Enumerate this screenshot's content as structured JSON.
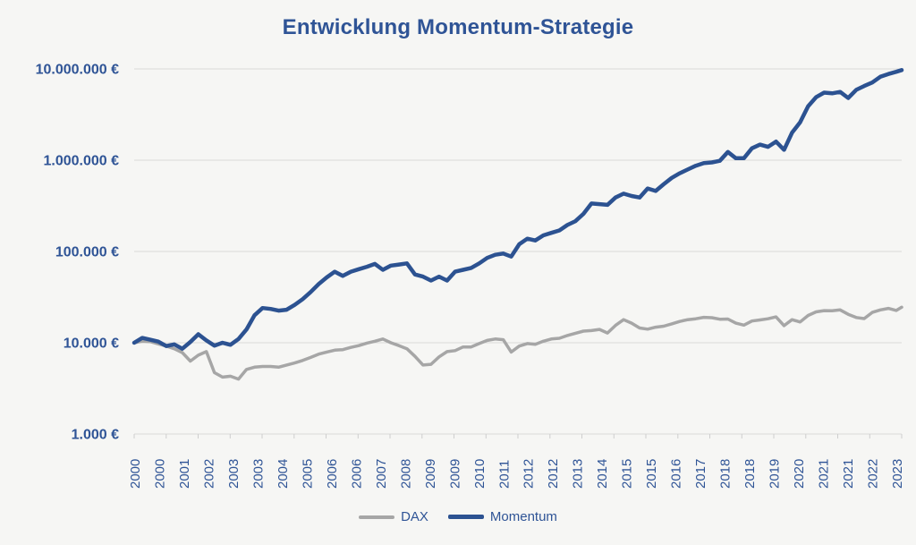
{
  "page": {
    "background": "#f6f6f4"
  },
  "header": {
    "title": "Entwicklung Momentum-Strategie"
  },
  "colors": {
    "title": "#2f5496",
    "axis_label": "#2f5496",
    "gridline": "#d9d9d8",
    "axis_line": "#cecece",
    "momentum": "#2c5291",
    "dax": "#a6a6a6",
    "background": "#f6f6f4"
  },
  "chart_data": {
    "type": "line",
    "title": "Entwicklung Momentum-Strategie",
    "currency": "EUR",
    "grid": "horizontal",
    "x_axis": {
      "unit": "year",
      "labels": [
        "2000",
        "2000",
        "2001",
        "2002",
        "2003",
        "2003",
        "2004",
        "2005",
        "2006",
        "2006",
        "2007",
        "2008",
        "2009",
        "2009",
        "2010",
        "2011",
        "2012",
        "2012",
        "2013",
        "2014",
        "2015",
        "2015",
        "2016",
        "2017",
        "2018",
        "2018",
        "2019",
        "2020",
        "2021",
        "2021",
        "2022",
        "2023"
      ],
      "label_rotation_deg": -90,
      "tick_interval_months": 12,
      "months_range": [
        0,
        287
      ]
    },
    "y_axis": {
      "scale": "log10",
      "range": [
        1000,
        10000000
      ],
      "ticks": [
        {
          "value": 1000,
          "label": "1.000 €"
        },
        {
          "value": 10000,
          "label": "10.000 €"
        },
        {
          "value": 100000,
          "label": "100.000 €"
        },
        {
          "value": 1000000,
          "label": "1.000.000 €"
        },
        {
          "value": 10000000,
          "label": "10.000.000 €"
        }
      ]
    },
    "months": [
      0,
      3,
      6,
      9,
      12,
      15,
      18,
      21,
      24,
      27,
      30,
      33,
      36,
      39,
      42,
      45,
      48,
      51,
      54,
      57,
      60,
      63,
      66,
      69,
      72,
      75,
      78,
      81,
      84,
      87,
      90,
      93,
      96,
      99,
      102,
      105,
      108,
      111,
      114,
      117,
      120,
      123,
      126,
      129,
      132,
      135,
      138,
      141,
      144,
      147,
      150,
      153,
      156,
      159,
      162,
      165,
      168,
      171,
      174,
      177,
      180,
      183,
      186,
      189,
      192,
      195,
      198,
      201,
      204,
      207,
      210,
      213,
      216,
      219,
      222,
      225,
      228,
      231,
      234,
      237,
      240,
      243,
      246,
      249,
      252,
      255,
      258,
      261,
      264,
      267,
      270,
      273,
      276,
      279,
      282,
      285,
      287
    ],
    "series": [
      {
        "name": "DAX",
        "color": "#a6a6a6",
        "stroke_width": 3.5,
        "values": [
          10000,
          10400,
          10300,
          9700,
          9200,
          8600,
          7800,
          6300,
          7300,
          8000,
          4700,
          4200,
          4300,
          4000,
          5100,
          5400,
          5500,
          5500,
          5400,
          5700,
          6000,
          6400,
          6900,
          7500,
          7900,
          8300,
          8400,
          8900,
          9300,
          9900,
          10400,
          11000,
          10000,
          9300,
          8600,
          7100,
          5700,
          5800,
          7000,
          8000,
          8200,
          9000,
          9000,
          9800,
          10600,
          11000,
          10800,
          7900,
          9200,
          9800,
          9600,
          10400,
          11000,
          11200,
          12000,
          12700,
          13400,
          13600,
          14000,
          12800,
          15500,
          17900,
          16400,
          14500,
          14100,
          14800,
          15200,
          16100,
          17100,
          17900,
          18300,
          19000,
          18800,
          18100,
          18200,
          16400,
          15600,
          17300,
          17800,
          18300,
          19200,
          15400,
          17900,
          16900,
          19900,
          21800,
          22500,
          22400,
          22900,
          20500,
          18900,
          18400,
          21500,
          22900,
          23800,
          22600,
          24500
        ]
      },
      {
        "name": "Momentum",
        "color": "#2c5291",
        "stroke_width": 4.5,
        "values": [
          10000,
          11300,
          10800,
          10300,
          9200,
          9600,
          8600,
          10200,
          12400,
          10600,
          9300,
          10000,
          9500,
          11000,
          14000,
          20000,
          24000,
          23500,
          22500,
          23000,
          26000,
          30000,
          36000,
          44000,
          52000,
          60000,
          54000,
          60000,
          64000,
          68000,
          73000,
          63000,
          70000,
          72000,
          74000,
          56000,
          53000,
          48000,
          53000,
          48000,
          60000,
          63000,
          66000,
          74000,
          85000,
          92000,
          95000,
          88000,
          120000,
          138000,
          132000,
          150000,
          160000,
          170000,
          195000,
          215000,
          258000,
          335000,
          330000,
          324000,
          390000,
          430000,
          405000,
          390000,
          490000,
          460000,
          545000,
          640000,
          720000,
          790000,
          870000,
          930000,
          945000,
          985000,
          1230000,
          1050000,
          1050000,
          1350000,
          1480000,
          1400000,
          1600000,
          1300000,
          2000000,
          2600000,
          3900000,
          4900000,
          5500000,
          5400000,
          5600000,
          4800000,
          5900000,
          6500000,
          7100000,
          8200000,
          8800000,
          9300000,
          9700000
        ]
      }
    ],
    "legend": {
      "position": "bottom",
      "entries": [
        "DAX",
        "Momentum"
      ]
    }
  }
}
